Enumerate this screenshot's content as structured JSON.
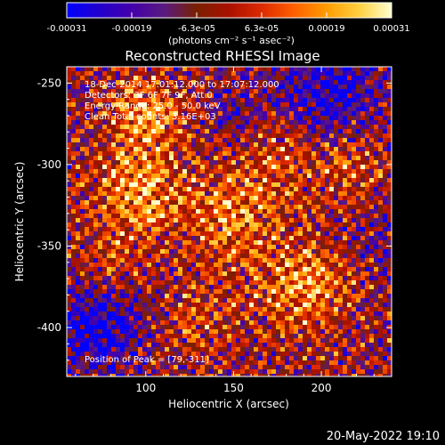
{
  "colorbar": {
    "tick_labels": [
      "-0.00031",
      "-0.00019",
      "-6.3e-05",
      "6.3e-05",
      "0.00019",
      "0.00031"
    ],
    "unit_label": "(photons cm⁻² s⁻¹ asec⁻²)",
    "range": [
      -0.00031,
      0.00031
    ],
    "colors": [
      "#0000ff",
      "#2200cc",
      "#4400aa",
      "#5a1a80",
      "#7a2000",
      "#aa1000",
      "#dd2a00",
      "#ff6000",
      "#ff9c00",
      "#ffd040",
      "#ffffd0"
    ]
  },
  "chart_data": {
    "type": "heatmap",
    "title": "Reconstructed RHESSI Image",
    "xlabel": "Heliocentric X (arcsec)",
    "ylabel": "Heliocentric Y (arcsec)",
    "xlim": [
      55,
      240
    ],
    "ylim": [
      -430,
      -240
    ],
    "x_ticks": [
      100,
      150,
      200
    ],
    "y_ticks": [
      -250,
      -300,
      -350,
      -400
    ],
    "annotations": [
      "18-Dec-2014 17:01:12.000 to 17:07:12.000",
      "Detectors: 3F 6F 7F 9F, Att 0",
      "Energy Range: 25.0 - 50.0 keV",
      "Clean    Total counts: 3.16E+03"
    ],
    "peak_text": "Position of Peak = [79,-311]",
    "peak": [
      79,
      -311
    ]
  },
  "footer_date": "20-May-2022 19:10"
}
